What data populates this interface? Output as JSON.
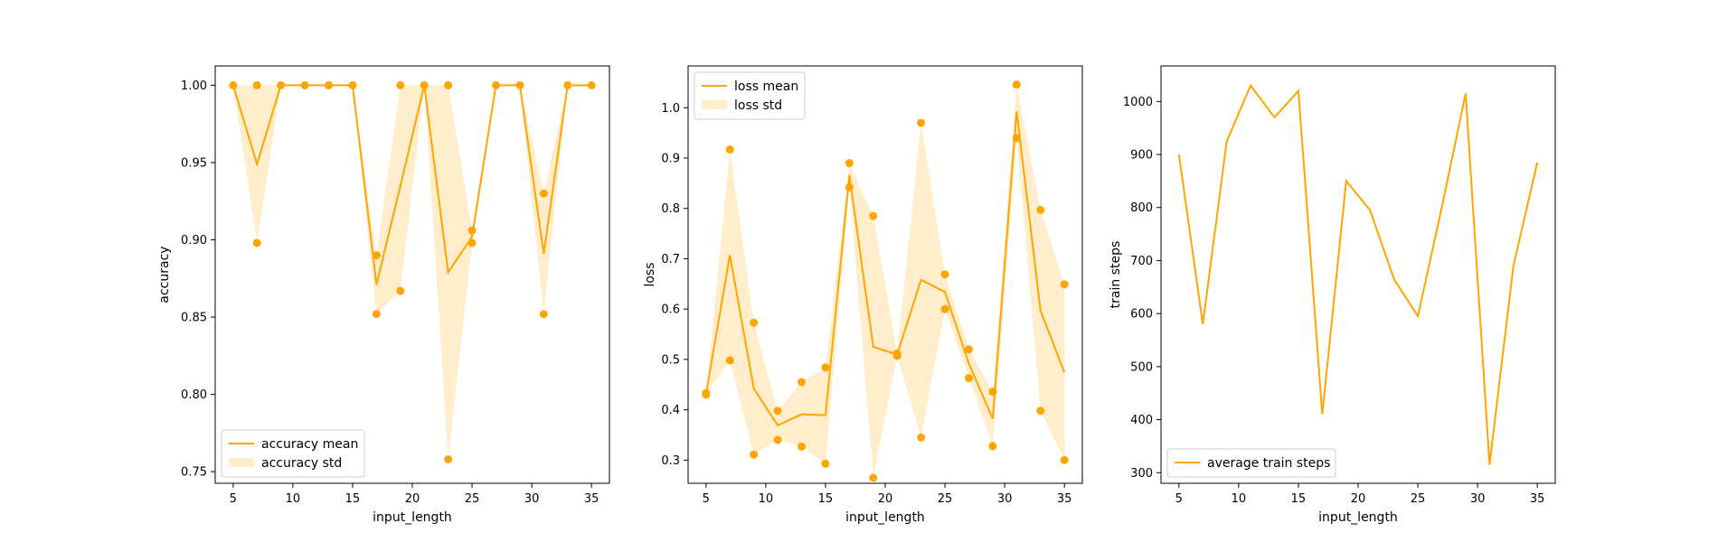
{
  "accent_color": "#ffa500",
  "chart_data": [
    {
      "type": "line",
      "xlabel": "input_length",
      "ylabel": "accuracy",
      "xlim": [
        3.5,
        36.5
      ],
      "ylim": [
        0.7425,
        1.0125
      ],
      "xticks": [
        5,
        10,
        15,
        20,
        25,
        30,
        35
      ],
      "yticks": [
        0.75,
        0.8,
        0.85,
        0.9,
        0.95,
        1.0
      ],
      "ytick_labels": [
        "0.75",
        "0.80",
        "0.85",
        "0.90",
        "0.95",
        "1.00"
      ],
      "grid": false,
      "legend_position": "lower-left",
      "x": [
        5,
        7,
        9,
        11,
        13,
        15,
        17,
        19,
        21,
        23,
        25,
        27,
        29,
        31,
        33,
        35
      ],
      "mean": [
        1.0,
        0.949,
        1.0,
        1.0,
        1.0,
        1.0,
        0.871,
        0.935,
        1.0,
        0.879,
        0.902,
        1.0,
        1.0,
        0.891,
        1.0,
        1.0
      ],
      "upper": [
        1.0,
        1.0,
        1.0,
        1.0,
        1.0,
        1.0,
        0.89,
        1.0,
        1.0,
        1.0,
        0.906,
        1.0,
        1.0,
        0.93,
        1.0,
        1.0
      ],
      "lower": [
        1.0,
        0.898,
        1.0,
        1.0,
        1.0,
        1.0,
        0.852,
        0.867,
        1.0,
        0.758,
        0.898,
        1.0,
        1.0,
        0.852,
        1.0,
        1.0
      ],
      "points": [
        [
          5,
          1.0
        ],
        [
          7,
          1.0
        ],
        [
          7,
          0.898
        ],
        [
          9,
          1.0
        ],
        [
          11,
          1.0
        ],
        [
          13,
          1.0
        ],
        [
          15,
          1.0
        ],
        [
          17,
          0.89
        ],
        [
          17,
          0.852
        ],
        [
          19,
          1.0
        ],
        [
          19,
          0.867
        ],
        [
          21,
          1.0
        ],
        [
          23,
          1.0
        ],
        [
          23,
          0.758
        ],
        [
          25,
          0.906
        ],
        [
          25,
          0.898
        ],
        [
          27,
          1.0
        ],
        [
          29,
          1.0
        ],
        [
          31,
          0.93
        ],
        [
          31,
          0.852
        ],
        [
          33,
          1.0
        ],
        [
          35,
          1.0
        ]
      ],
      "legend": [
        "accuracy mean",
        "accuracy std"
      ]
    },
    {
      "type": "line",
      "xlabel": "input_length",
      "ylabel": "loss",
      "xlim": [
        3.5,
        36.5
      ],
      "ylim": [
        0.254,
        1.083
      ],
      "xticks": [
        5,
        10,
        15,
        20,
        25,
        30,
        35
      ],
      "yticks": [
        0.3,
        0.4,
        0.5,
        0.6,
        0.7,
        0.8,
        0.9,
        1.0
      ],
      "ytick_labels": [
        "0.3",
        "0.4",
        "0.5",
        "0.6",
        "0.7",
        "0.8",
        "0.9",
        "1.0"
      ],
      "grid": false,
      "legend_position": "upper-left",
      "x": [
        5,
        7,
        9,
        11,
        13,
        15,
        17,
        19,
        21,
        23,
        25,
        27,
        29,
        31,
        33,
        35
      ],
      "mean": [
        0.432,
        0.707,
        0.442,
        0.369,
        0.391,
        0.389,
        0.866,
        0.525,
        0.51,
        0.658,
        0.634,
        0.492,
        0.382,
        0.993,
        0.597,
        0.474
      ],
      "upper": [
        0.432,
        0.917,
        0.573,
        0.398,
        0.455,
        0.484,
        0.89,
        0.785,
        0.512,
        0.97,
        0.669,
        0.52,
        0.436,
        1.046,
        0.797,
        0.649
      ],
      "lower": [
        0.432,
        0.498,
        0.311,
        0.34,
        0.327,
        0.293,
        0.842,
        0.265,
        0.507,
        0.345,
        0.6,
        0.463,
        0.328,
        0.94,
        0.398,
        0.3
      ],
      "points": [
        [
          5,
          0.433
        ],
        [
          5,
          0.43
        ],
        [
          7,
          0.917
        ],
        [
          7,
          0.498
        ],
        [
          9,
          0.573
        ],
        [
          9,
          0.311
        ],
        [
          11,
          0.398
        ],
        [
          11,
          0.34
        ],
        [
          13,
          0.455
        ],
        [
          13,
          0.327
        ],
        [
          15,
          0.484
        ],
        [
          15,
          0.293
        ],
        [
          17,
          0.89
        ],
        [
          17,
          0.842
        ],
        [
          19,
          0.785
        ],
        [
          19,
          0.265
        ],
        [
          21,
          0.512
        ],
        [
          21,
          0.507
        ],
        [
          23,
          0.97
        ],
        [
          23,
          0.345
        ],
        [
          25,
          0.669
        ],
        [
          25,
          0.6
        ],
        [
          27,
          0.52
        ],
        [
          27,
          0.463
        ],
        [
          29,
          0.436
        ],
        [
          29,
          0.328
        ],
        [
          31,
          1.046
        ],
        [
          31,
          0.94
        ],
        [
          33,
          0.797
        ],
        [
          33,
          0.398
        ],
        [
          35,
          0.649
        ],
        [
          35,
          0.3
        ]
      ],
      "legend": [
        "loss mean",
        "loss std"
      ]
    },
    {
      "type": "line",
      "xlabel": "input_length",
      "ylabel": "train steps",
      "xlim": [
        3.5,
        36.5
      ],
      "ylim": [
        280,
        1067
      ],
      "xticks": [
        5,
        10,
        15,
        20,
        25,
        30,
        35
      ],
      "yticks": [
        300,
        400,
        500,
        600,
        700,
        800,
        900,
        1000
      ],
      "ytick_labels": [
        "300",
        "400",
        "500",
        "600",
        "700",
        "800",
        "900",
        "1000"
      ],
      "grid": false,
      "legend_position": "lower-left",
      "x": [
        5,
        7,
        9,
        11,
        13,
        15,
        17,
        19,
        21,
        23,
        25,
        27,
        29,
        31,
        33,
        35
      ],
      "values": [
        900,
        580,
        925,
        1030,
        970,
        1020,
        410,
        850,
        795,
        665,
        595,
        800,
        1015,
        315,
        690,
        885
      ],
      "legend": [
        "average train steps"
      ]
    }
  ]
}
